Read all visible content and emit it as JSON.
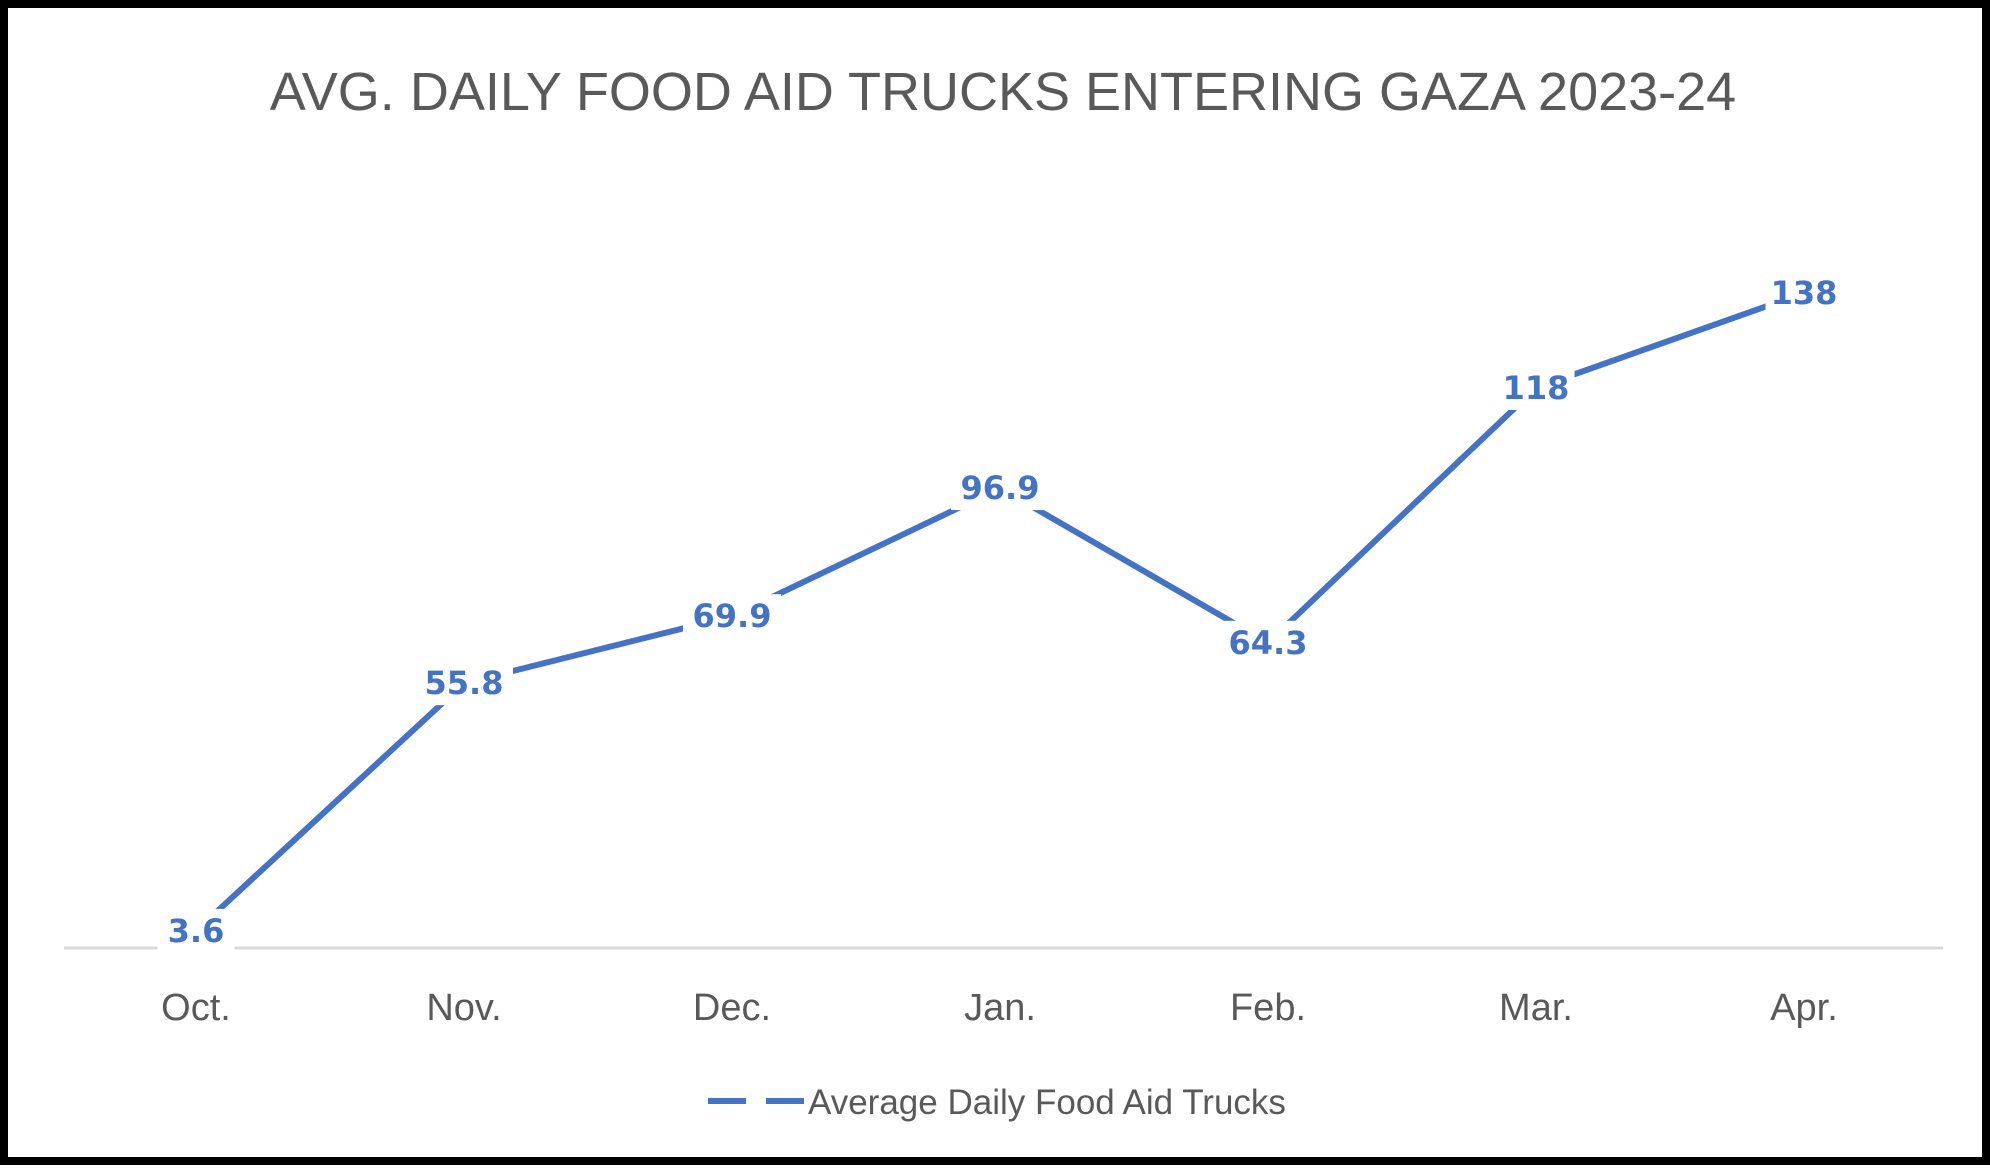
{
  "chart_data": {
    "type": "line",
    "title": "AVG. DAILY FOOD AID TRUCKS ENTERING GAZA 2023-24",
    "xlabel": "",
    "ylabel": "",
    "categories": [
      "Oct.",
      "Nov.",
      "Dec.",
      "Jan.",
      "Feb.",
      "Mar.",
      "Apr."
    ],
    "series": [
      {
        "name": "Average Daily Food Aid Trucks",
        "values": [
          3.6,
          55.8,
          69.9,
          96.9,
          64.3,
          118,
          138
        ],
        "labels": [
          "3.6",
          "55.8",
          "69.9",
          "96.9",
          "64.3",
          "118",
          "138"
        ],
        "color": "#4472C4"
      }
    ],
    "ylim": [
      0,
      138
    ],
    "grid": false,
    "legend": "bottom",
    "colors": {
      "line": "#4472C4",
      "text": "#595959",
      "axis": "#D9D9D9"
    }
  }
}
